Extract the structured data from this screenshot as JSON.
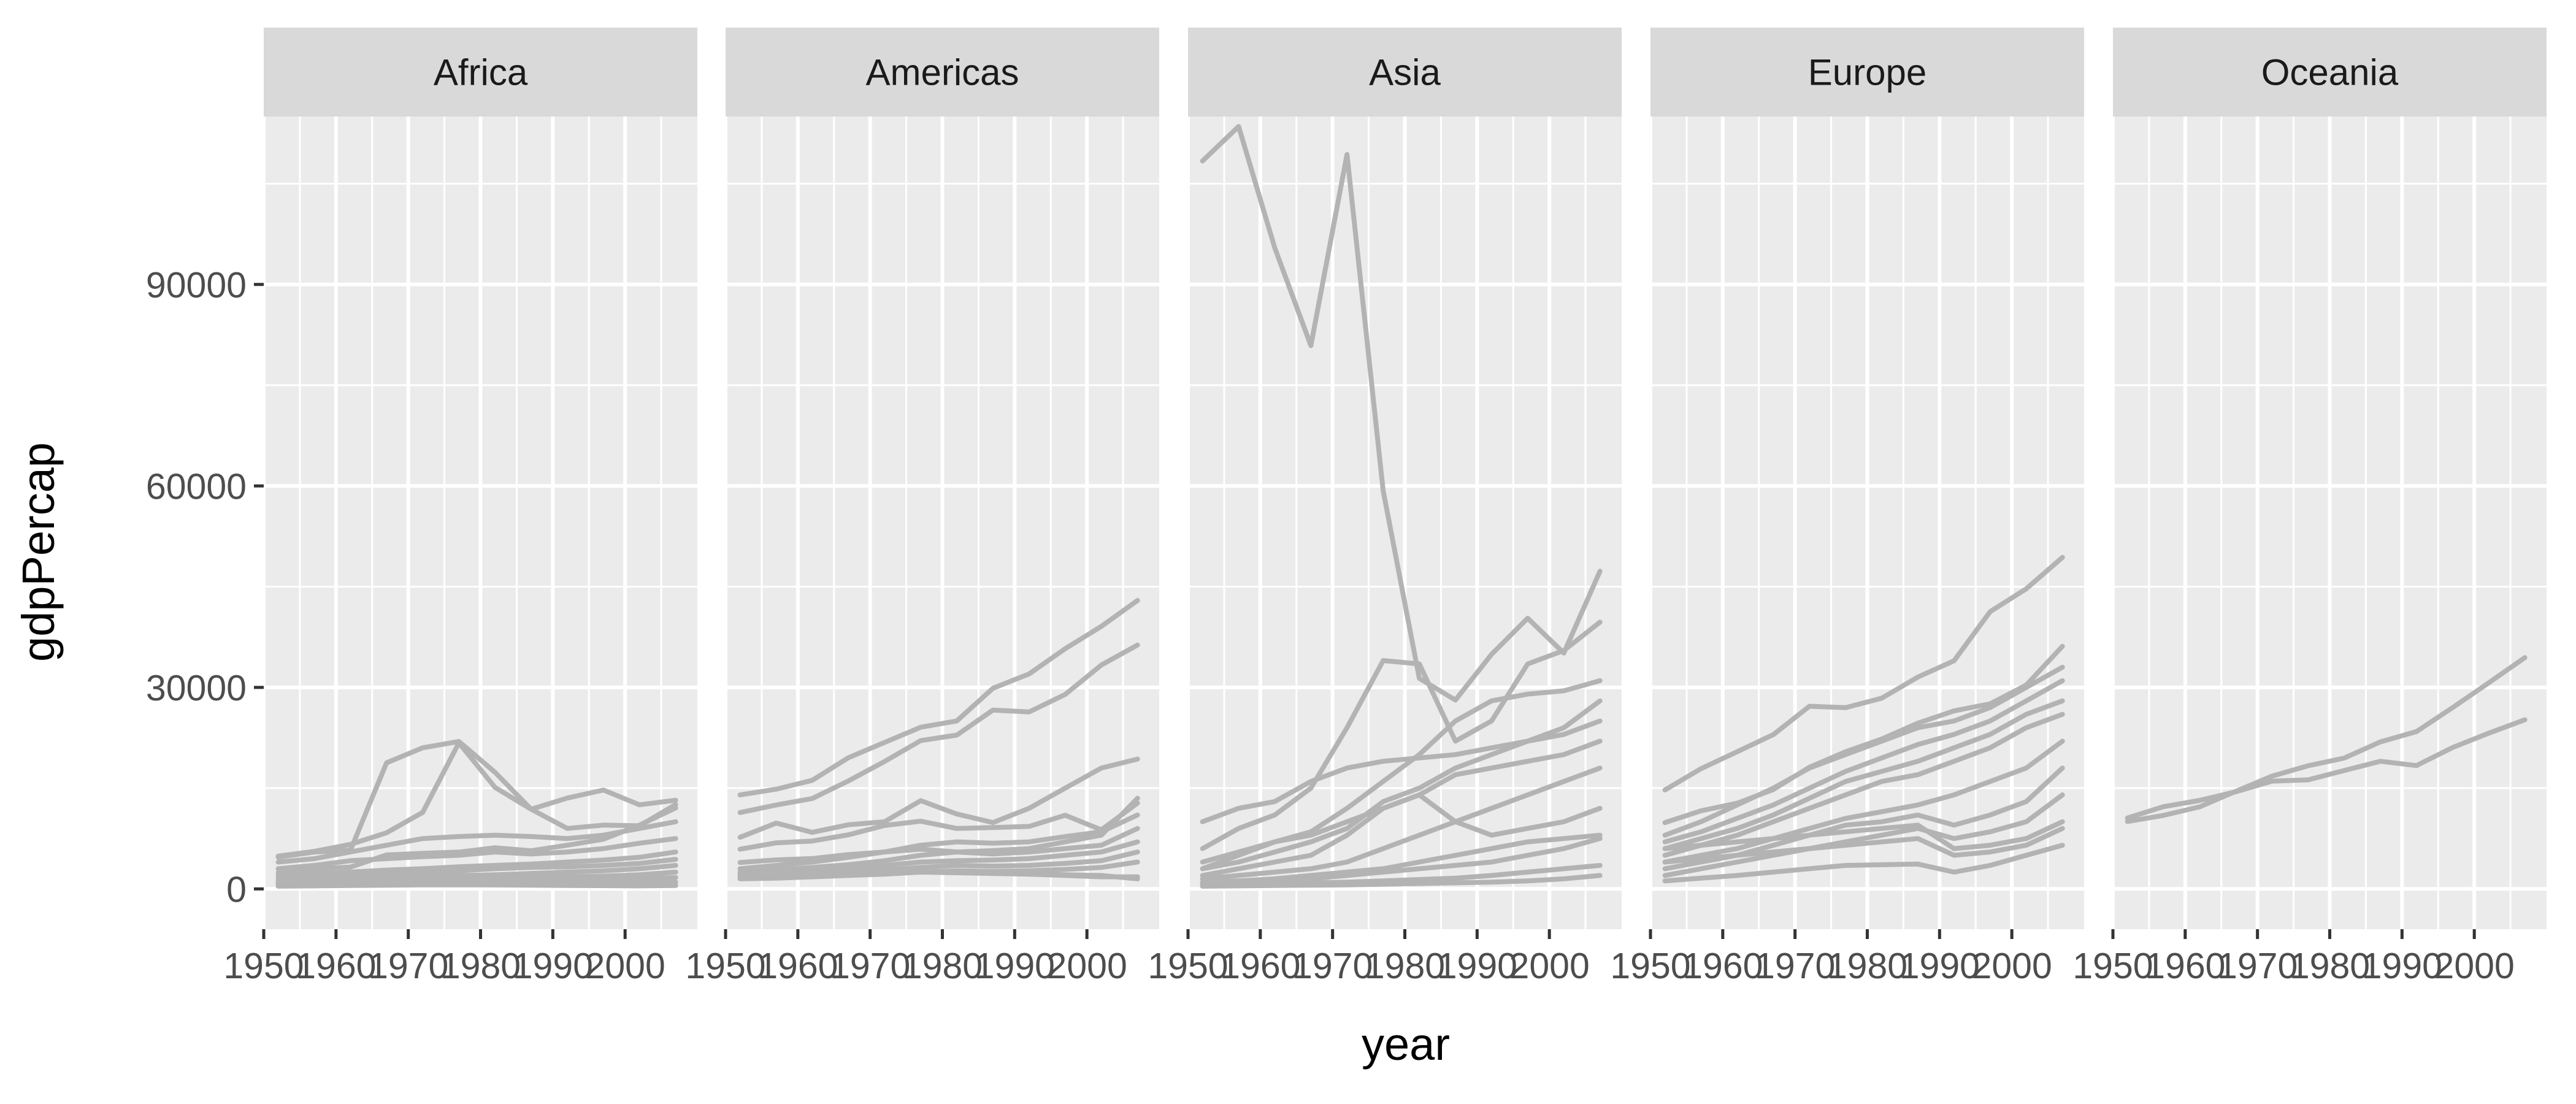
{
  "chart_data": {
    "type": "line",
    "facet_by": "continent",
    "xlabel": "year",
    "ylabel": "gdpPercap",
    "xlim": [
      1950,
      2010
    ],
    "ylim": [
      -6000,
      115000
    ],
    "x_ticks": [
      1950,
      1960,
      1970,
      1980,
      1990,
      2000
    ],
    "x_tick_labels": [
      "1950",
      "1960",
      "1970",
      "1980",
      "1990",
      "2000"
    ],
    "y_ticks": [
      0,
      30000,
      60000,
      90000
    ],
    "y_tick_labels": [
      "0",
      "30000",
      "60000",
      "90000"
    ],
    "grid": true,
    "legend": "none",
    "colors": {
      "line": "#b3b3b3",
      "panel_bg": "#ebebeb",
      "strip_bg": "#d9d9d9",
      "grid": "#ffffff",
      "tick": "#333333",
      "tick_text": "#4d4d4d"
    },
    "x": [
      1952,
      1957,
      1962,
      1967,
      1972,
      1977,
      1982,
      1987,
      1992,
      1997,
      2002,
      2007
    ],
    "panels": [
      {
        "name": "Africa",
        "series": [
          {
            "values": [
              4725,
              5487,
              5768,
              18773,
              21011,
              21951,
              17364,
              11864,
              13522,
              14723,
              12522,
              13206
            ]
          },
          {
            "values": [
              4880,
              5588,
              6630,
              8358,
              11401,
              21746,
              15113,
              11864,
              9000,
              9500,
              9400,
              12570
            ]
          },
          {
            "values": [
              2449,
              3014,
              3247,
              5060,
              5300,
              5475,
              6125,
              5681,
              6500,
              7400,
              9500,
              12057
            ]
          },
          {
            "values": [
              4000,
              4500,
              5500,
              6500,
              7500,
              7800,
              8000,
              7800,
              7500,
              8000,
              9000,
              10000
            ]
          },
          {
            "values": [
              3000,
              3500,
              4200,
              4500,
              4800,
              5000,
              5500,
              5200,
              5500,
              6000,
              6800,
              7500
            ]
          },
          {
            "values": [
              2000,
              2300,
              2500,
              2800,
              3000,
              3300,
              3500,
              3700,
              4000,
              4300,
              4700,
              5500
            ]
          },
          {
            "values": [
              1600,
              1800,
              2000,
              2200,
              2500,
              2700,
              3000,
              3200,
              3300,
              3500,
              3800,
              4400
            ]
          },
          {
            "values": [
              1200,
              1300,
              1400,
              1600,
              1800,
              2000,
              2100,
              2300,
              2500,
              2700,
              3000,
              3500
            ]
          },
          {
            "values": [
              1000,
              1100,
              1200,
              1300,
              1400,
              1500,
              1600,
              1700,
              1800,
              1900,
              2100,
              2500
            ]
          },
          {
            "values": [
              800,
              850,
              900,
              1000,
              1100,
              1200,
              1250,
              1300,
              1350,
              1400,
              1500,
              1700
            ]
          },
          {
            "values": [
              600,
              650,
              700,
              750,
              800,
              850,
              900,
              850,
              800,
              850,
              900,
              1000
            ]
          },
          {
            "values": [
              400,
              450,
              500,
              550,
              600,
              600,
              580,
              550,
              500,
              480,
              450,
              500
            ]
          }
        ]
      },
      {
        "name": "Americas",
        "series": [
          {
            "values": [
              13990,
              14847,
              16173,
              19530,
              21806,
              24073,
              25010,
              29884,
              32004,
              35767,
              39097,
              42952
            ]
          },
          {
            "values": [
              11367,
              12490,
              13462,
              16077,
              18971,
              22091,
              22899,
              26627,
              26343,
              28955,
              33329,
              36319
            ]
          },
          {
            "values": [
              5911,
              6857,
              7133,
              8053,
              9443,
              10079,
              8998,
              9140,
              9308,
              10968,
              8798,
              12779
            ]
          },
          {
            "values": [
              7690,
              9802,
              8423,
              9549,
              10000,
              13143,
              11152,
              9884,
              12000,
              15000,
              18000,
              19329
            ]
          },
          {
            "values": [
              3939,
              4315,
              4519,
              5107,
              5494,
              5919,
              5500,
              5700,
              6000,
              7000,
              8000,
              13500
            ]
          },
          {
            "values": [
              3000,
              3500,
              4000,
              4700,
              5500,
              6500,
              7000,
              6800,
              7000,
              7800,
              8500,
              11000
            ]
          },
          {
            "values": [
              2500,
              2800,
              3200,
              3600,
              4200,
              5000,
              5500,
              5200,
              5500,
              6000,
              6500,
              9000
            ]
          },
          {
            "values": [
              2200,
              2500,
              2800,
              3100,
              3500,
              4000,
              4200,
              4300,
              4500,
              5000,
              5500,
              7000
            ]
          },
          {
            "values": [
              1800,
              2000,
              2200,
              2500,
              2800,
              3200,
              3500,
              3400,
              3500,
              3800,
              4200,
              5500
            ]
          },
          {
            "values": [
              1500,
              1600,
              1800,
              2000,
              2200,
              2500,
              2700,
              2600,
              2700,
              2900,
              3200,
              4000
            ]
          },
          {
            "values": [
              1800,
              1900,
              2000,
              2100,
              2300,
              2500,
              2600,
              2400,
              2200,
              2000,
              1800,
              1800
            ]
          },
          {
            "values": [
              2000,
              2100,
              2200,
              2300,
              2400,
              2500,
              2400,
              2300,
              2200,
              2100,
              2000,
              1500
            ]
          }
        ]
      },
      {
        "name": "Asia",
        "series": [
          {
            "values": [
              108382,
              113523,
              95458,
              80894,
              109348,
              59265,
              31354,
              28118,
              34932,
              40301,
              35110,
              47307
            ]
          },
          {
            "values": [
              6000,
              9000,
              11000,
              15000,
              24000,
              34000,
              33500,
              22000,
              25000,
              33500,
              35500,
              39725
            ]
          },
          {
            "values": [
              4000,
              5500,
              7000,
              8500,
              12000,
              16000,
              20000,
              25000,
              28000,
              29000,
              29500,
              31000
            ]
          },
          {
            "values": [
              3000,
              4000,
              5500,
              7000,
              9000,
              13000,
              15000,
              18000,
              20000,
              22000,
              24000,
              28000
            ]
          },
          {
            "values": [
              10000,
              12000,
              13000,
              16000,
              18000,
              19000,
              19500,
              20000,
              21000,
              22000,
              23000,
              25000
            ]
          },
          {
            "values": [
              2000,
              3000,
              4000,
              5000,
              8000,
              12000,
              14000,
              17000,
              18000,
              19000,
              20000,
              22000
            ]
          },
          {
            "values": [
              1500,
              2000,
              2500,
              3000,
              4000,
              6000,
              8000,
              10000,
              12000,
              14000,
              16000,
              18000
            ]
          },
          {
            "values": [
              3000,
              5000,
              7000,
              8000,
              10000,
              12000,
              14000,
              10000,
              8000,
              9000,
              10000,
              12000
            ]
          },
          {
            "values": [
              1000,
              1200,
              1500,
              2000,
              2500,
              3000,
              4000,
              5000,
              6000,
              7000,
              7500,
              8000
            ]
          },
          {
            "values": [
              800,
              1000,
              1200,
              1500,
              2000,
              2500,
              3000,
              3500,
              4000,
              5000,
              6000,
              7500
            ]
          },
          {
            "values": [
              600,
              700,
              800,
              900,
              1000,
              1200,
              1400,
              1600,
              2000,
              2500,
              3000,
              3500
            ]
          },
          {
            "values": [
              400,
              450,
              500,
              550,
              600,
              700,
              800,
              900,
              1000,
              1200,
              1500,
              2000
            ]
          }
        ]
      },
      {
        "name": "Europe",
        "series": [
          {
            "values": [
              14734,
              17909,
              20431,
              22966,
              27195,
              26982,
              28398,
              31541,
              33965,
              41283,
              44684,
              49357
            ]
          },
          {
            "values": [
              9867,
              11635,
              12753,
              14805,
              18117,
              20422,
              22316,
              24676,
              26505,
              27561,
              30351,
              36126
            ]
          },
          {
            "values": [
              8000,
              10000,
              12500,
              15000,
              18000,
              20000,
              22000,
              24000,
              25000,
              27000,
              30000,
              33000
            ]
          },
          {
            "values": [
              7000,
              8500,
              10500,
              12500,
              15000,
              17500,
              19500,
              21500,
              23000,
              25000,
              28000,
              31000
            ]
          },
          {
            "values": [
              6000,
              7500,
              9000,
              11000,
              13500,
              16000,
              17500,
              19000,
              21000,
              23000,
              26000,
              28000
            ]
          },
          {
            "values": [
              5000,
              6500,
              8000,
              10000,
              12000,
              14000,
              16000,
              17000,
              19000,
              21000,
              24000,
              26000
            ]
          },
          {
            "values": [
              4000,
              5000,
              6000,
              7500,
              9000,
              10500,
              11500,
              12500,
              14000,
              16000,
              18000,
              22000
            ]
          },
          {
            "values": [
              3000,
              4000,
              5000,
              6500,
              8000,
              9500,
              10000,
              11000,
              9500,
              11000,
              13000,
              18000
            ]
          },
          {
            "values": [
              2000,
              3000,
              4000,
              5000,
              6000,
              7000,
              8000,
              9000,
              7500,
              8500,
              10000,
              14000
            ]
          },
          {
            "values": [
              6000,
              6500,
              7000,
              7500,
              8000,
              8500,
              9000,
              9500,
              6000,
              6500,
              7500,
              10000
            ]
          },
          {
            "values": [
              4000,
              4500,
              5000,
              5500,
              6000,
              6500,
              7000,
              7500,
              5000,
              5500,
              6500,
              9000
            ]
          },
          {
            "values": [
              1200,
              1600,
              2000,
              2500,
              3000,
              3500,
              3600,
              3700,
              2500,
              3500,
              5000,
              6500
            ]
          }
        ]
      },
      {
        "name": "Oceania",
        "series": [
          {
            "values": [
              10040,
              10950,
              12217,
              14526,
              16789,
              18334,
              19477,
              21889,
              23425,
              26998,
              30688,
              34435
            ]
          },
          {
            "values": [
              10557,
              12247,
              13176,
              14464,
              16046,
              16234,
              17633,
              19007,
              18363,
              21050,
              23190,
              25185
            ]
          }
        ]
      }
    ]
  }
}
